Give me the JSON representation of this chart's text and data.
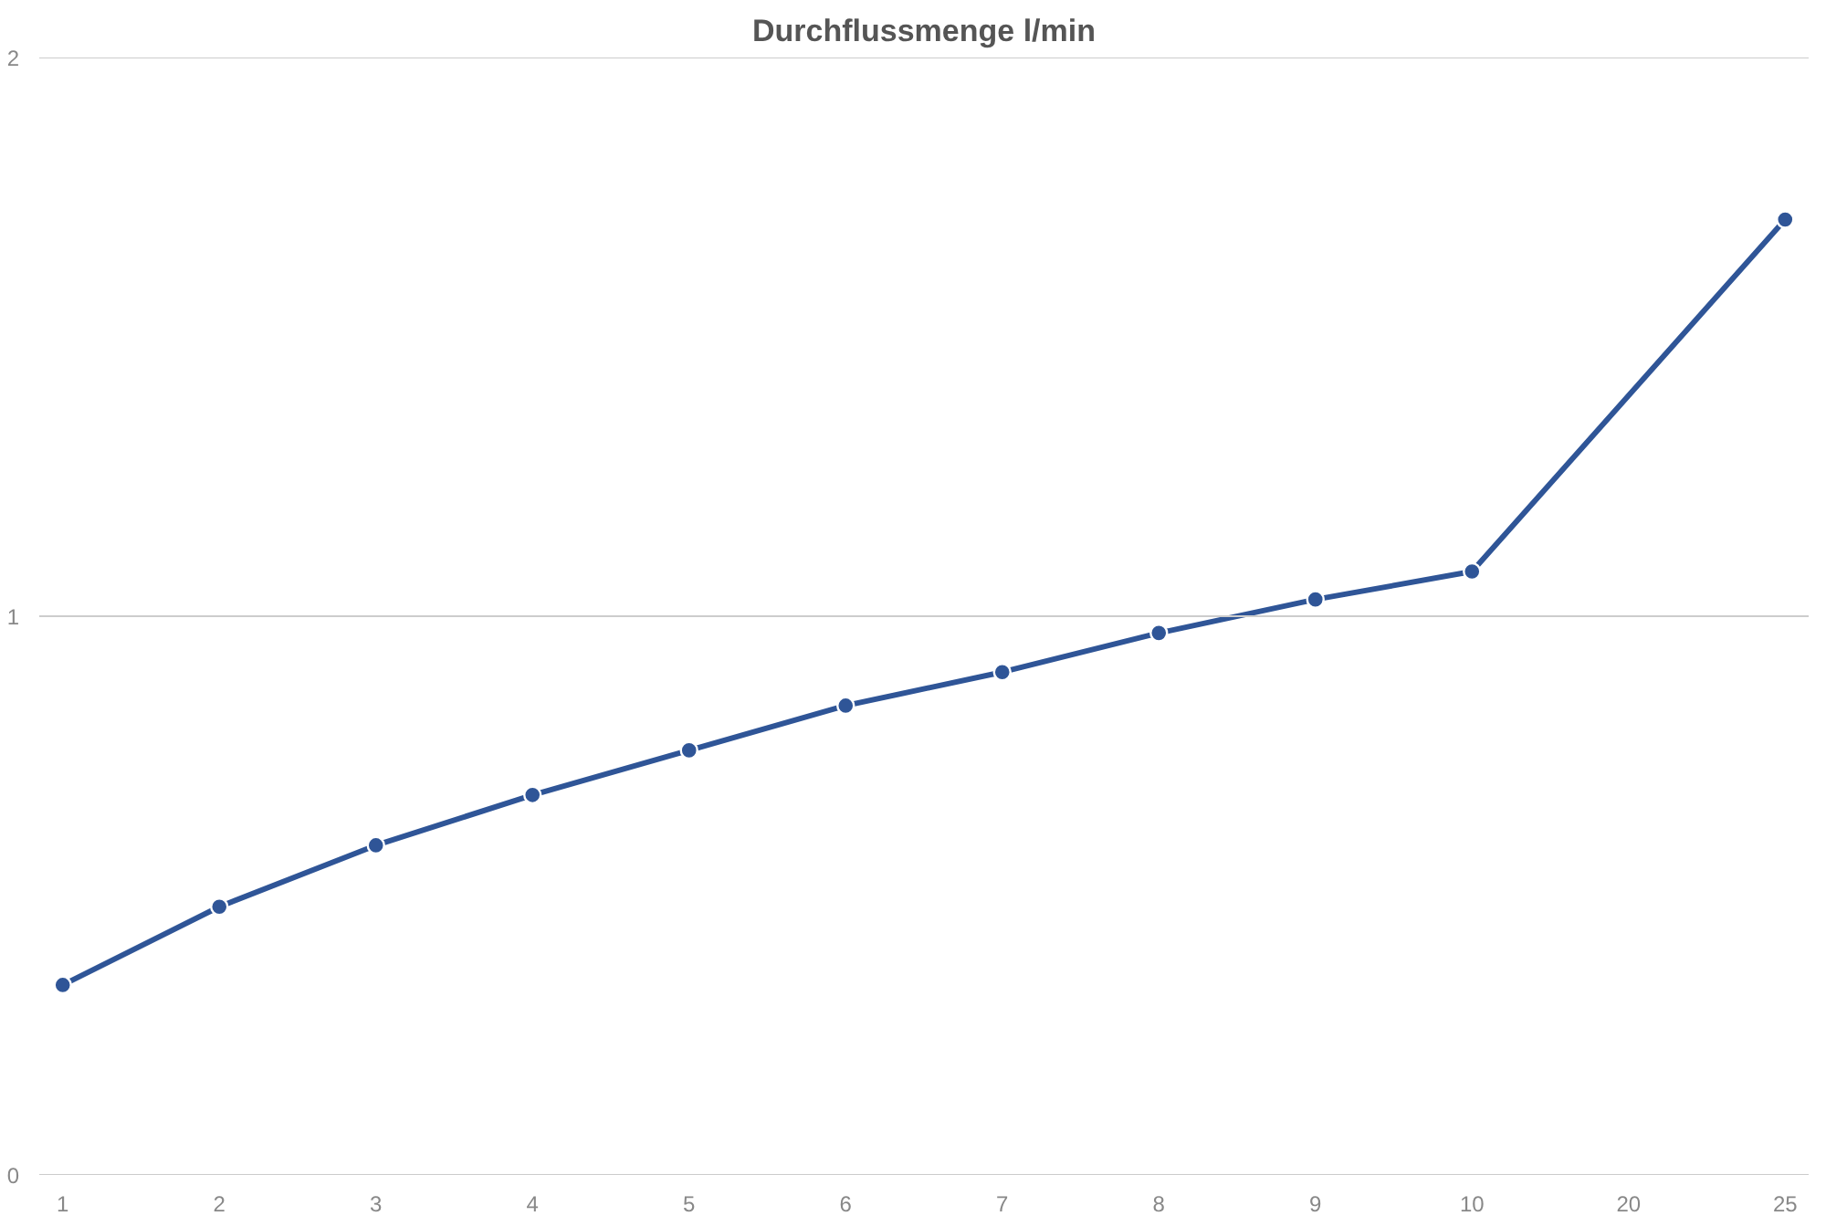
{
  "chart_data": {
    "type": "line",
    "title": "Durchflussmenge l/min",
    "categories": [
      "1",
      "2",
      "3",
      "4",
      "5",
      "6",
      "7",
      "8",
      "9",
      "10",
      "20",
      "25"
    ],
    "series": [
      {
        "color": "#2f5597",
        "values": [
          0.34,
          0.48,
          0.59,
          0.68,
          0.76,
          0.84,
          0.9,
          0.97,
          1.03,
          1.08,
          null,
          1.71
        ]
      }
    ],
    "ylim": [
      0,
      2
    ],
    "yticks": [
      0,
      1,
      2
    ],
    "grid": "y",
    "marker": "circle",
    "line_style": "solid"
  }
}
